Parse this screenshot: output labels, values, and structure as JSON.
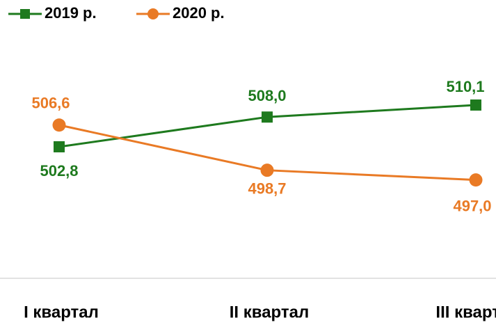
{
  "chart_data": {
    "type": "line",
    "categories": [
      "I квартал",
      "II квартал",
      "III квартал"
    ],
    "series": [
      {
        "name": "2019 р.",
        "color": "#1e7a1e",
        "marker": "square",
        "values": [
          502.8,
          508.0,
          510.1
        ],
        "value_labels": [
          "502,8",
          "508,0",
          "510,1"
        ]
      },
      {
        "name": "2020 р.",
        "color": "#e97a25",
        "marker": "circle",
        "values": [
          506.6,
          498.7,
          497.0
        ],
        "value_labels": [
          "506,6",
          "498,7",
          "497,0"
        ]
      }
    ],
    "ylim": [
      480,
      530
    ],
    "legend": "top-left"
  }
}
